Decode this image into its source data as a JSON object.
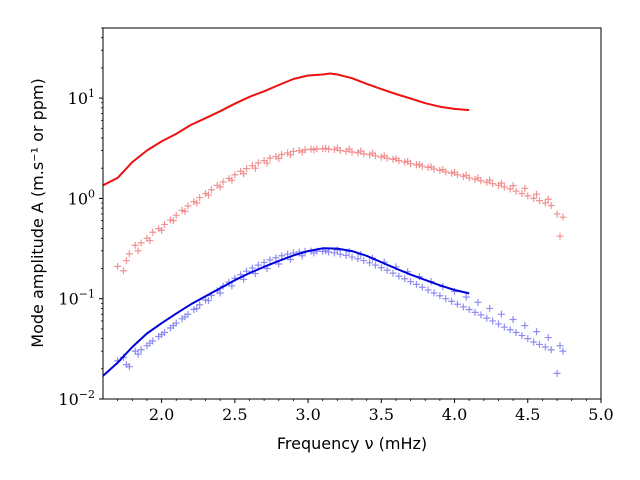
{
  "chart_data": {
    "type": "scatter",
    "title": "",
    "xlabel": "Frequency ν (mHz)",
    "ylabel": "Mode amplitude A (m.s⁻¹ or ppm)",
    "xlim": [
      1.6,
      5.0
    ],
    "ylim": [
      0.01,
      50
    ],
    "yscale": "log",
    "x_ticks": [
      2.0,
      2.5,
      3.0,
      3.5,
      4.0,
      4.5,
      5.0
    ],
    "x_tick_labels": [
      "2.0",
      "2.5",
      "3.0",
      "3.5",
      "4.0",
      "4.5",
      "5.0"
    ],
    "y_ticks": [
      0.01,
      0.1,
      1,
      10
    ],
    "y_tick_labels": [
      {
        "base": "10",
        "exp": "−2"
      },
      {
        "base": "10",
        "exp": "−1"
      },
      {
        "base": "10",
        "exp": "0"
      },
      {
        "base": "10",
        "exp": "1"
      }
    ],
    "colors": {
      "red": "#ee1111",
      "blue": "#0000dd",
      "red_marker": "#f08080",
      "blue_marker": "#7a7af0"
    },
    "series": [
      {
        "name": "red model",
        "kind": "line",
        "color": "#ee1111",
        "x": [
          1.6,
          1.7,
          1.8,
          1.9,
          2.0,
          2.1,
          2.2,
          2.3,
          2.4,
          2.5,
          2.6,
          2.7,
          2.8,
          2.9,
          3.0,
          3.1,
          3.15,
          3.2,
          3.3,
          3.4,
          3.5,
          3.6,
          3.7,
          3.8,
          3.9,
          4.0,
          4.1
        ],
        "y": [
          1.35,
          1.6,
          2.3,
          3.0,
          3.7,
          4.4,
          5.4,
          6.3,
          7.4,
          8.8,
          10.3,
          11.7,
          13.5,
          15.5,
          16.8,
          17.2,
          17.6,
          17.2,
          15.8,
          13.9,
          12.3,
          11.0,
          9.9,
          8.9,
          8.2,
          7.8,
          7.6
        ]
      },
      {
        "name": "blue model",
        "kind": "line",
        "color": "#0000dd",
        "x": [
          1.6,
          1.7,
          1.8,
          1.9,
          2.0,
          2.1,
          2.2,
          2.3,
          2.4,
          2.5,
          2.6,
          2.7,
          2.8,
          2.9,
          3.0,
          3.1,
          3.2,
          3.3,
          3.4,
          3.5,
          3.6,
          3.7,
          3.8,
          3.9,
          4.0,
          4.1
        ],
        "y": [
          0.017,
          0.023,
          0.033,
          0.045,
          0.057,
          0.071,
          0.088,
          0.106,
          0.127,
          0.153,
          0.18,
          0.208,
          0.238,
          0.27,
          0.298,
          0.318,
          0.316,
          0.298,
          0.268,
          0.231,
          0.2,
          0.174,
          0.154,
          0.136,
          0.122,
          0.113
        ]
      },
      {
        "name": "red observed",
        "kind": "scatter",
        "marker": "+",
        "color": "#f08080",
        "x": [
          1.7,
          1.74,
          1.78,
          1.82,
          1.86,
          1.9,
          1.94,
          1.98,
          2.02,
          2.06,
          2.1,
          2.14,
          2.18,
          2.22,
          2.26,
          2.3,
          2.34,
          2.38,
          2.42,
          2.46,
          2.5,
          2.54,
          2.58,
          2.62,
          2.66,
          2.7,
          2.74,
          2.78,
          2.82,
          2.86,
          2.9,
          2.94,
          2.98,
          3.02,
          3.06,
          3.1,
          3.14,
          3.18,
          3.22,
          3.26,
          3.3,
          3.34,
          3.38,
          3.42,
          3.46,
          3.5,
          3.54,
          3.58,
          3.62,
          3.66,
          3.7,
          3.74,
          3.78,
          3.82,
          3.86,
          3.9,
          3.94,
          3.98,
          4.02,
          4.06,
          4.1,
          4.14,
          4.18,
          4.22,
          4.26,
          4.3,
          4.34,
          4.38,
          4.42,
          4.46,
          4.5,
          4.54,
          4.58,
          4.62,
          4.66,
          4.7,
          4.74,
          1.76,
          1.84,
          1.92,
          2.0,
          2.08,
          2.16,
          2.24,
          2.32,
          2.4,
          2.48,
          2.56,
          2.64,
          2.72,
          2.8,
          2.88,
          2.96,
          3.04,
          3.12,
          3.2,
          3.28,
          3.36,
          3.44,
          3.52,
          3.6,
          3.68,
          3.76,
          3.84,
          3.92,
          4.0,
          4.08,
          4.16,
          4.24,
          4.32,
          4.4,
          4.48,
          4.56,
          4.64,
          4.72
        ],
        "y": [
          0.21,
          0.19,
          0.28,
          0.34,
          0.36,
          0.4,
          0.46,
          0.5,
          0.55,
          0.61,
          0.68,
          0.76,
          0.84,
          0.93,
          1.02,
          1.12,
          1.22,
          1.35,
          1.46,
          1.58,
          1.72,
          1.86,
          1.98,
          2.12,
          2.26,
          2.38,
          2.52,
          2.62,
          2.74,
          2.84,
          2.94,
          3.0,
          3.05,
          3.1,
          3.12,
          3.12,
          3.1,
          3.06,
          3.0,
          2.95,
          2.9,
          2.85,
          2.78,
          2.72,
          2.66,
          2.58,
          2.52,
          2.45,
          2.38,
          2.3,
          2.22,
          2.16,
          2.1,
          2.04,
          1.96,
          1.9,
          1.84,
          1.78,
          1.72,
          1.66,
          1.6,
          1.55,
          1.5,
          1.45,
          1.4,
          1.35,
          1.3,
          1.24,
          1.18,
          1.12,
          1.06,
          1.0,
          0.95,
          0.9,
          0.85,
          0.7,
          0.65,
          0.24,
          0.3,
          0.38,
          0.48,
          0.6,
          0.74,
          0.9,
          1.08,
          1.3,
          1.52,
          1.76,
          2.0,
          2.25,
          2.5,
          2.72,
          2.9,
          3.05,
          3.15,
          3.18,
          3.1,
          2.96,
          2.82,
          2.66,
          2.5,
          2.34,
          2.18,
          2.06,
          1.94,
          1.82,
          1.7,
          1.6,
          1.52,
          1.42,
          1.34,
          1.26,
          1.1,
          0.98,
          0.42
        ]
      },
      {
        "name": "blue observed",
        "kind": "scatter",
        "marker": "+",
        "color": "#7a7af0",
        "x": [
          1.7,
          1.74,
          1.78,
          1.82,
          1.86,
          1.9,
          1.94,
          1.98,
          2.02,
          2.06,
          2.1,
          2.14,
          2.18,
          2.22,
          2.26,
          2.3,
          2.34,
          2.38,
          2.42,
          2.46,
          2.5,
          2.54,
          2.58,
          2.62,
          2.66,
          2.7,
          2.74,
          2.78,
          2.82,
          2.86,
          2.9,
          2.94,
          2.98,
          3.02,
          3.06,
          3.1,
          3.14,
          3.18,
          3.22,
          3.26,
          3.3,
          3.34,
          3.38,
          3.42,
          3.46,
          3.5,
          3.54,
          3.58,
          3.62,
          3.66,
          3.7,
          3.74,
          3.78,
          3.82,
          3.86,
          3.9,
          3.94,
          3.98,
          4.02,
          4.06,
          4.1,
          4.14,
          4.18,
          4.22,
          4.26,
          4.3,
          4.34,
          4.38,
          4.42,
          4.46,
          4.5,
          4.54,
          4.58,
          4.62,
          4.66,
          4.7,
          4.74,
          1.76,
          1.84,
          1.92,
          2.0,
          2.08,
          2.16,
          2.24,
          2.32,
          2.4,
          2.48,
          2.56,
          2.64,
          2.72,
          2.8,
          2.88,
          2.96,
          3.04,
          3.12,
          3.2,
          3.28,
          3.36,
          3.44,
          3.52,
          3.6,
          3.68,
          3.76,
          3.84,
          3.92,
          4.0,
          4.08,
          4.16,
          4.24,
          4.32,
          4.4,
          4.48,
          4.56,
          4.64,
          4.72
        ],
        "y": [
          0.024,
          0.026,
          0.021,
          0.03,
          0.031,
          0.034,
          0.038,
          0.042,
          0.046,
          0.051,
          0.057,
          0.063,
          0.07,
          0.078,
          0.087,
          0.097,
          0.108,
          0.12,
          0.133,
          0.146,
          0.16,
          0.174,
          0.188,
          0.202,
          0.216,
          0.23,
          0.244,
          0.256,
          0.268,
          0.278,
          0.286,
          0.292,
          0.296,
          0.298,
          0.298,
          0.296,
          0.292,
          0.286,
          0.278,
          0.27,
          0.26,
          0.25,
          0.24,
          0.228,
          0.216,
          0.204,
          0.192,
          0.18,
          0.168,
          0.158,
          0.148,
          0.139,
          0.13,
          0.122,
          0.114,
          0.107,
          0.1,
          0.094,
          0.088,
          0.083,
          0.078,
          0.073,
          0.069,
          0.064,
          0.06,
          0.056,
          0.052,
          0.049,
          0.046,
          0.043,
          0.04,
          0.037,
          0.035,
          0.033,
          0.031,
          0.018,
          0.03,
          0.022,
          0.028,
          0.036,
          0.044,
          0.054,
          0.066,
          0.08,
          0.096,
          0.114,
          0.134,
          0.156,
          0.178,
          0.2,
          0.222,
          0.246,
          0.268,
          0.286,
          0.3,
          0.306,
          0.296,
          0.276,
          0.254,
          0.232,
          0.208,
          0.186,
          0.166,
          0.148,
          0.132,
          0.118,
          0.104,
          0.092,
          0.08,
          0.07,
          0.062,
          0.054,
          0.047,
          0.041,
          0.034
        ]
      }
    ]
  }
}
